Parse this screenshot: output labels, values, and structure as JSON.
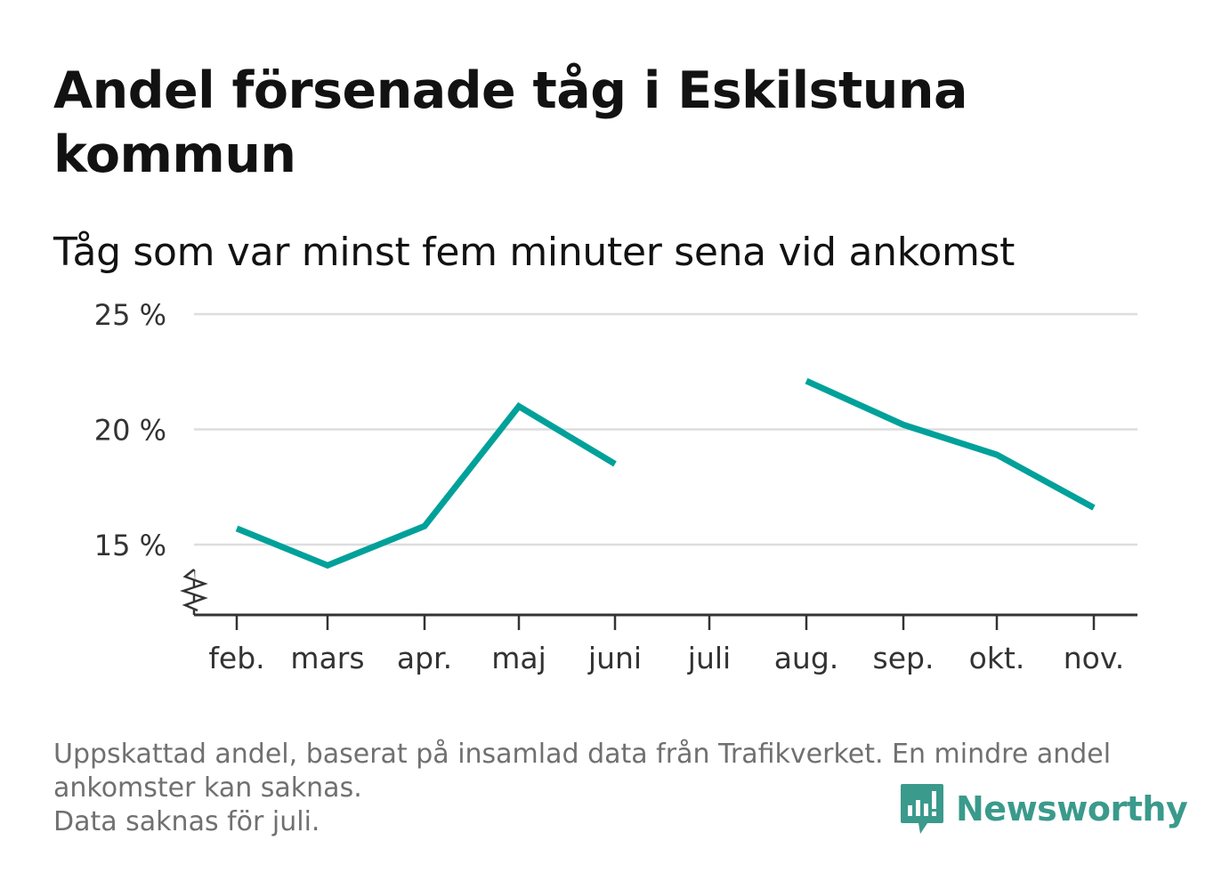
{
  "title": "Andel försenade tåg i Eskilstuna kommun",
  "subtitle": "Tåg som var minst fem minuter sena vid ankomst",
  "notes": [
    "Uppskattad andel, baserat på insamlad data från Trafikverket. En mindre andel",
    "ankomster kan saknas.",
    "Data saknas för juli."
  ],
  "brand": "Newsworthy",
  "colors": {
    "line": "#00a19a",
    "grid": "#dddddd",
    "axis": "#333333",
    "brand": "#3a9a8c"
  },
  "chart_data": {
    "type": "line",
    "categories": [
      "feb.",
      "mars",
      "apr.",
      "maj",
      "juni",
      "juli",
      "aug.",
      "sep.",
      "okt.",
      "nov."
    ],
    "series": [
      {
        "values": [
          15.7,
          14.1,
          15.8,
          21.0,
          18.5,
          null,
          22.1,
          20.2,
          18.9,
          16.6
        ]
      }
    ],
    "yticks": [
      15,
      20,
      25
    ],
    "ytick_labels": [
      "15 %",
      "20 %",
      "25 %"
    ],
    "ylim": [
      12,
      25
    ],
    "y_axis_break": true,
    "grid": true,
    "xlabel": "",
    "ylabel": ""
  }
}
